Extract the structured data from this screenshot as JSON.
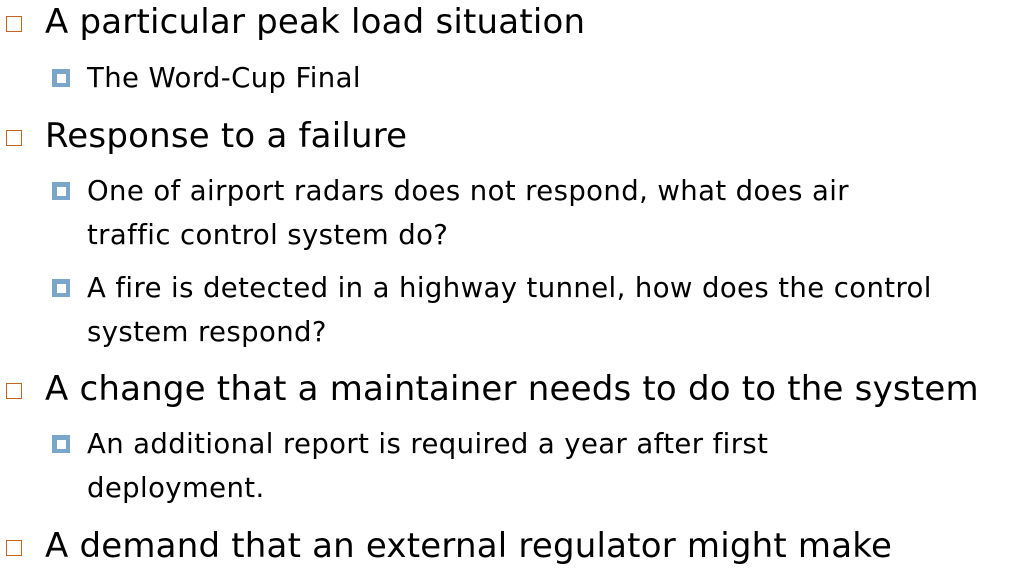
{
  "slide": {
    "bullet_colors": {
      "level1": "#c5641f",
      "level2": "#7aa7c9"
    },
    "items": [
      {
        "text": "A particular peak load situation"
      },
      {
        "text": "The Word-Cup Final"
      },
      {
        "text": "Response to a failure"
      },
      {
        "line1": "One of airport radars does not respond, what does air",
        "line2": "traffic control system do?"
      },
      {
        "line1": "A fire is detected in a highway tunnel, how does the control",
        "line2": "system respond?"
      },
      {
        "text": "A change that a maintainer needs to do to the system"
      },
      {
        "line1": "An additional report is required a year after first",
        "line2": "deployment."
      },
      {
        "text": "A demand that an external regulator might make"
      }
    ]
  }
}
